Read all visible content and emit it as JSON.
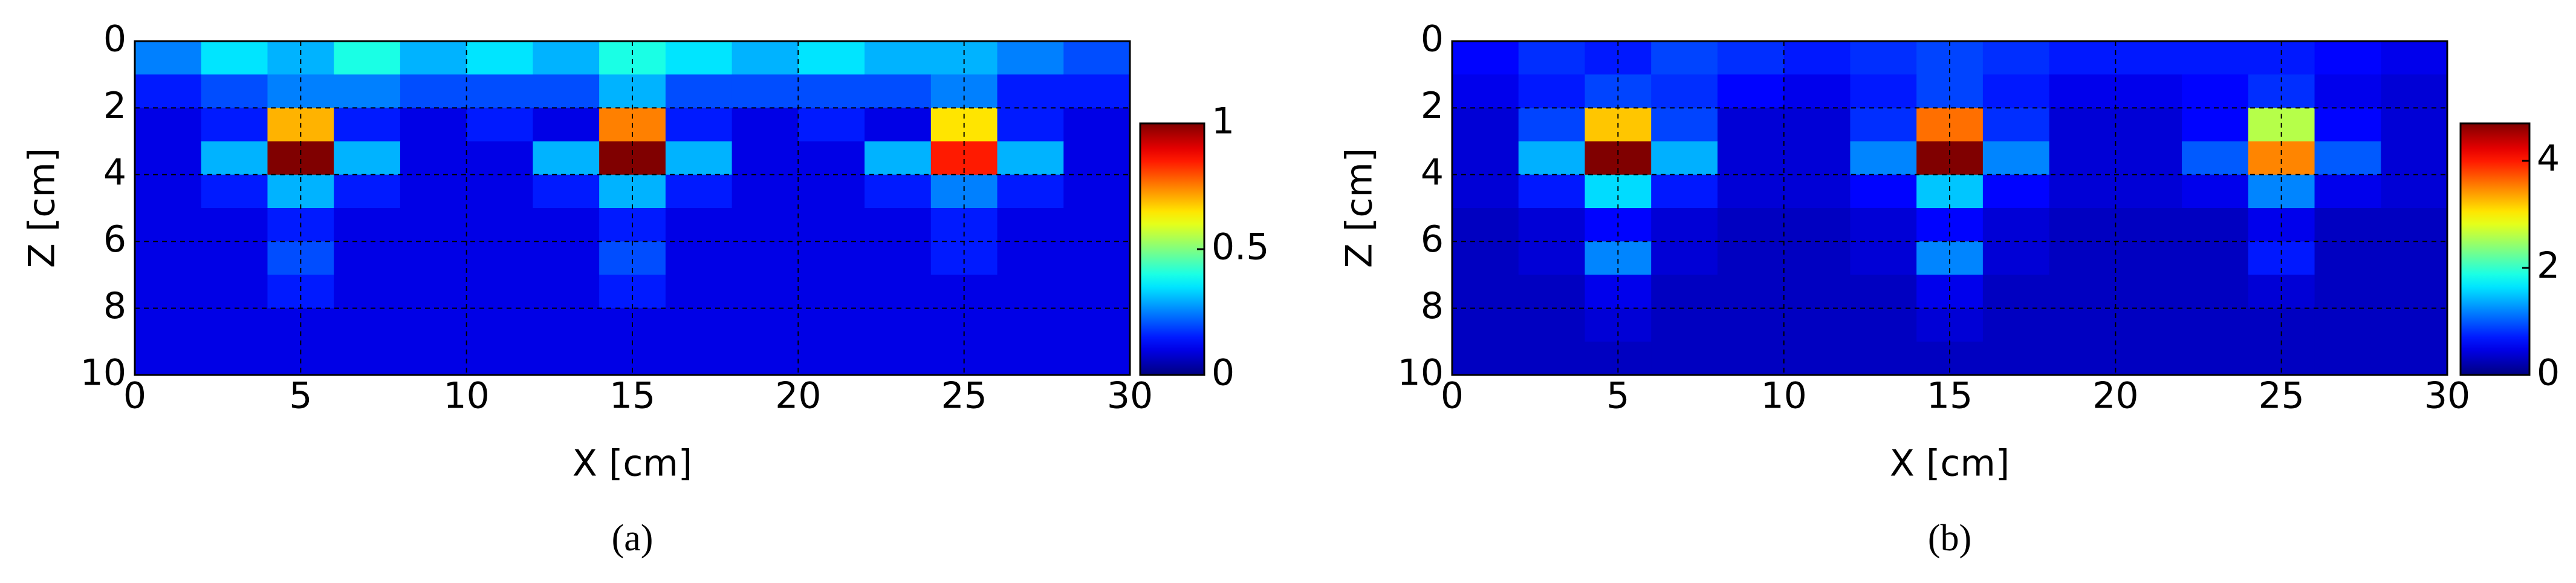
{
  "chart_data": [
    {
      "type": "heatmap",
      "caption": "(a)",
      "x_label": "X [cm]",
      "y_label": "Z [cm]",
      "x": [
        1,
        3,
        5,
        7,
        9,
        11,
        13,
        15,
        17,
        19,
        21,
        23,
        25,
        27,
        29
      ],
      "z": [
        0.5,
        1.5,
        2.5,
        3.5,
        4.5,
        5.5,
        6.5,
        7.5,
        8.5,
        9.5
      ],
      "values": [
        [
          0.25,
          0.35,
          0.3,
          0.4,
          0.3,
          0.35,
          0.3,
          0.4,
          0.35,
          0.3,
          0.35,
          0.3,
          0.3,
          0.25,
          0.2
        ],
        [
          0.15,
          0.2,
          0.25,
          0.25,
          0.2,
          0.2,
          0.2,
          0.3,
          0.2,
          0.2,
          0.2,
          0.2,
          0.25,
          0.15,
          0.15
        ],
        [
          0.1,
          0.15,
          0.7,
          0.15,
          0.1,
          0.15,
          0.1,
          0.75,
          0.15,
          0.1,
          0.15,
          0.1,
          0.65,
          0.15,
          0.1
        ],
        [
          0.1,
          0.3,
          1,
          0.3,
          0.1,
          0.1,
          0.3,
          1,
          0.3,
          0.1,
          0.1,
          0.3,
          0.85,
          0.3,
          0.1
        ],
        [
          0.1,
          0.15,
          0.3,
          0.15,
          0.1,
          0.1,
          0.15,
          0.3,
          0.15,
          0.1,
          0.1,
          0.15,
          0.25,
          0.15,
          0.1
        ],
        [
          0.1,
          0.1,
          0.15,
          0.1,
          0.1,
          0.1,
          0.1,
          0.15,
          0.1,
          0.1,
          0.1,
          0.1,
          0.15,
          0.1,
          0.1
        ],
        [
          0.1,
          0.1,
          0.2,
          0.1,
          0.1,
          0.1,
          0.1,
          0.2,
          0.1,
          0.1,
          0.1,
          0.1,
          0.15,
          0.1,
          0.1
        ],
        [
          0.1,
          0.1,
          0.15,
          0.1,
          0.1,
          0.1,
          0.1,
          0.15,
          0.1,
          0.1,
          0.1,
          0.1,
          0.1,
          0.1,
          0.1
        ],
        [
          0.1,
          0.1,
          0.1,
          0.1,
          0.1,
          0.1,
          0.1,
          0.1,
          0.1,
          0.1,
          0.1,
          0.1,
          0.1,
          0.1,
          0.1
        ],
        [
          0.1,
          0.1,
          0.1,
          0.1,
          0.1,
          0.1,
          0.1,
          0.1,
          0.1,
          0.1,
          0.1,
          0.1,
          0.1,
          0.1,
          0.1
        ]
      ],
      "xlim": [
        0,
        30
      ],
      "xticks": [
        0,
        5,
        10,
        15,
        20,
        25,
        30
      ],
      "ylim": [
        0,
        10
      ],
      "yticks": [
        0,
        2,
        4,
        6,
        8,
        10
      ],
      "y_reversed": true,
      "grid": true,
      "colormap": "jet",
      "clim": [
        0,
        1
      ],
      "cticks": [
        0,
        0.5,
        1
      ]
    },
    {
      "type": "heatmap",
      "caption": "(b)",
      "x_label": "X [cm]",
      "y_label": "Z [cm]",
      "x": [
        1,
        3,
        5,
        7,
        9,
        11,
        13,
        15,
        17,
        19,
        21,
        23,
        25,
        27,
        29
      ],
      "z": [
        0.5,
        1.5,
        2.5,
        3.5,
        4.5,
        5.5,
        6.5,
        7.5,
        8.5,
        9.5
      ],
      "values": [
        [
          0.6,
          0.8,
          0.7,
          0.9,
          0.8,
          0.7,
          0.8,
          0.9,
          0.8,
          0.7,
          0.7,
          0.7,
          0.7,
          0.6,
          0.5
        ],
        [
          0.5,
          0.7,
          0.9,
          0.8,
          0.6,
          0.5,
          0.7,
          0.9,
          0.7,
          0.5,
          0.5,
          0.6,
          0.8,
          0.5,
          0.4
        ],
        [
          0.4,
          0.9,
          3.2,
          0.9,
          0.4,
          0.4,
          0.8,
          3.6,
          0.8,
          0.4,
          0.4,
          0.6,
          2.6,
          0.6,
          0.4
        ],
        [
          0.4,
          1.4,
          4.7,
          1.4,
          0.4,
          0.4,
          1.2,
          4.7,
          1.2,
          0.4,
          0.4,
          1,
          3.5,
          1,
          0.4
        ],
        [
          0.4,
          0.7,
          1.6,
          0.7,
          0.4,
          0.4,
          0.6,
          1.5,
          0.6,
          0.4,
          0.4,
          0.5,
          1.2,
          0.5,
          0.4
        ],
        [
          0.3,
          0.4,
          0.6,
          0.4,
          0.3,
          0.3,
          0.4,
          0.6,
          0.4,
          0.3,
          0.3,
          0.3,
          0.5,
          0.3,
          0.3
        ],
        [
          0.3,
          0.4,
          1.2,
          0.4,
          0.3,
          0.3,
          0.4,
          1.2,
          0.4,
          0.3,
          0.3,
          0.3,
          0.7,
          0.3,
          0.3
        ],
        [
          0.3,
          0.3,
          0.5,
          0.3,
          0.3,
          0.3,
          0.3,
          0.5,
          0.3,
          0.3,
          0.3,
          0.3,
          0.4,
          0.3,
          0.3
        ],
        [
          0.3,
          0.3,
          0.4,
          0.3,
          0.3,
          0.3,
          0.3,
          0.4,
          0.3,
          0.3,
          0.3,
          0.3,
          0.3,
          0.3,
          0.3
        ],
        [
          0.3,
          0.3,
          0.3,
          0.3,
          0.3,
          0.3,
          0.3,
          0.3,
          0.3,
          0.3,
          0.3,
          0.3,
          0.3,
          0.3,
          0.3
        ]
      ],
      "xlim": [
        0,
        30
      ],
      "xticks": [
        0,
        5,
        10,
        15,
        20,
        25,
        30
      ],
      "ylim": [
        0,
        10
      ],
      "yticks": [
        0,
        2,
        4,
        6,
        8,
        10
      ],
      "y_reversed": true,
      "grid": true,
      "colormap": "jet",
      "clim": [
        0,
        4.7
      ],
      "cticks": [
        0,
        2,
        4
      ]
    }
  ]
}
